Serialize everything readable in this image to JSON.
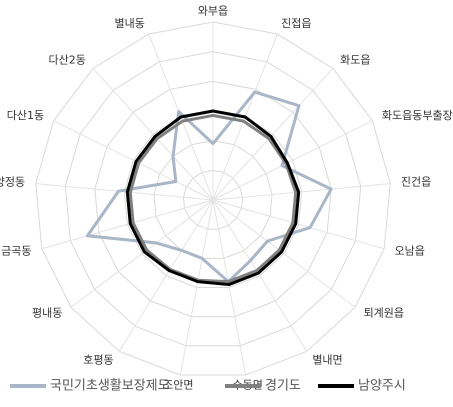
{
  "chart_data": {
    "type": "radar",
    "categories": [
      "와부읍",
      "진접읍",
      "화도읍",
      "화도읍동부출장소",
      "진건읍",
      "오남읍",
      "퇴계원읍",
      "별내면",
      "수동면",
      "조안면",
      "호평동",
      "평내동",
      "금곡동",
      "양정동",
      "다산1동",
      "다산2동",
      "별내동"
    ],
    "series": [
      {
        "name": "국민기초생활보장제도",
        "color": "#a9b6c8",
        "values": [
          1.9,
          3.9,
          4.3,
          2.6,
          4.0,
          3.4,
          2.3,
          2.4,
          2.8,
          2.0,
          2.0,
          2.4,
          4.4,
          3.2,
          1.4,
          2.0,
          3.2
        ]
      },
      {
        "name": "경기도",
        "color": "#808080",
        "values": [
          2.85,
          2.85,
          2.8,
          2.75,
          2.8,
          2.8,
          2.8,
          2.8,
          2.8,
          2.75,
          2.75,
          2.8,
          2.8,
          2.8,
          2.8,
          2.8,
          2.85
        ]
      },
      {
        "name": "남양주시",
        "color": "#000000",
        "values": [
          3.0,
          3.0,
          2.9,
          2.8,
          2.9,
          2.9,
          2.9,
          2.9,
          2.9,
          2.8,
          2.8,
          2.9,
          2.9,
          2.9,
          2.9,
          2.9,
          3.0
        ]
      }
    ],
    "ylim": [
      0,
      6
    ],
    "yticks": [
      1,
      2,
      3,
      4,
      5,
      6
    ],
    "grid": true,
    "legend": "bottom"
  }
}
